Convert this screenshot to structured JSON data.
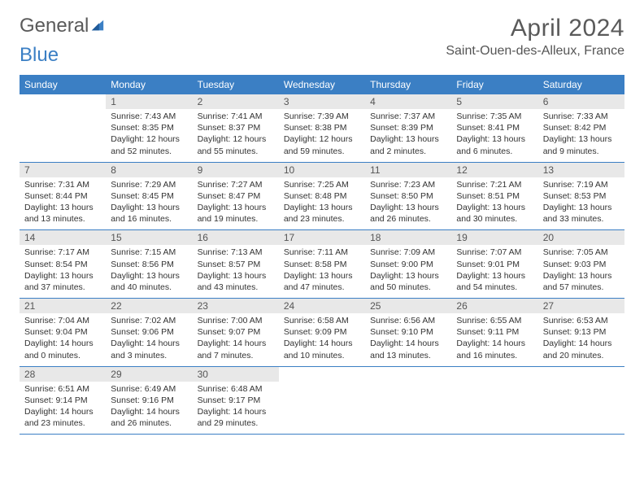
{
  "logo": {
    "text1": "General",
    "text2": "Blue"
  },
  "title": "April 2024",
  "location": "Saint-Ouen-des-Alleux, France",
  "colors": {
    "header_bg": "#3b7fc4",
    "header_text": "#ffffff",
    "daynum_bg": "#e8e8e8",
    "border": "#3b7fc4",
    "text": "#333333",
    "title_color": "#5a5a5a"
  },
  "weekdays": [
    "Sunday",
    "Monday",
    "Tuesday",
    "Wednesday",
    "Thursday",
    "Friday",
    "Saturday"
  ],
  "weeks": [
    [
      null,
      {
        "day": "1",
        "sunrise": "7:43 AM",
        "sunset": "8:35 PM",
        "daylight": "12 hours and 52 minutes."
      },
      {
        "day": "2",
        "sunrise": "7:41 AM",
        "sunset": "8:37 PM",
        "daylight": "12 hours and 55 minutes."
      },
      {
        "day": "3",
        "sunrise": "7:39 AM",
        "sunset": "8:38 PM",
        "daylight": "12 hours and 59 minutes."
      },
      {
        "day": "4",
        "sunrise": "7:37 AM",
        "sunset": "8:39 PM",
        "daylight": "13 hours and 2 minutes."
      },
      {
        "day": "5",
        "sunrise": "7:35 AM",
        "sunset": "8:41 PM",
        "daylight": "13 hours and 6 minutes."
      },
      {
        "day": "6",
        "sunrise": "7:33 AM",
        "sunset": "8:42 PM",
        "daylight": "13 hours and 9 minutes."
      }
    ],
    [
      {
        "day": "7",
        "sunrise": "7:31 AM",
        "sunset": "8:44 PM",
        "daylight": "13 hours and 13 minutes."
      },
      {
        "day": "8",
        "sunrise": "7:29 AM",
        "sunset": "8:45 PM",
        "daylight": "13 hours and 16 minutes."
      },
      {
        "day": "9",
        "sunrise": "7:27 AM",
        "sunset": "8:47 PM",
        "daylight": "13 hours and 19 minutes."
      },
      {
        "day": "10",
        "sunrise": "7:25 AM",
        "sunset": "8:48 PM",
        "daylight": "13 hours and 23 minutes."
      },
      {
        "day": "11",
        "sunrise": "7:23 AM",
        "sunset": "8:50 PM",
        "daylight": "13 hours and 26 minutes."
      },
      {
        "day": "12",
        "sunrise": "7:21 AM",
        "sunset": "8:51 PM",
        "daylight": "13 hours and 30 minutes."
      },
      {
        "day": "13",
        "sunrise": "7:19 AM",
        "sunset": "8:53 PM",
        "daylight": "13 hours and 33 minutes."
      }
    ],
    [
      {
        "day": "14",
        "sunrise": "7:17 AM",
        "sunset": "8:54 PM",
        "daylight": "13 hours and 37 minutes."
      },
      {
        "day": "15",
        "sunrise": "7:15 AM",
        "sunset": "8:56 PM",
        "daylight": "13 hours and 40 minutes."
      },
      {
        "day": "16",
        "sunrise": "7:13 AM",
        "sunset": "8:57 PM",
        "daylight": "13 hours and 43 minutes."
      },
      {
        "day": "17",
        "sunrise": "7:11 AM",
        "sunset": "8:58 PM",
        "daylight": "13 hours and 47 minutes."
      },
      {
        "day": "18",
        "sunrise": "7:09 AM",
        "sunset": "9:00 PM",
        "daylight": "13 hours and 50 minutes."
      },
      {
        "day": "19",
        "sunrise": "7:07 AM",
        "sunset": "9:01 PM",
        "daylight": "13 hours and 54 minutes."
      },
      {
        "day": "20",
        "sunrise": "7:05 AM",
        "sunset": "9:03 PM",
        "daylight": "13 hours and 57 minutes."
      }
    ],
    [
      {
        "day": "21",
        "sunrise": "7:04 AM",
        "sunset": "9:04 PM",
        "daylight": "14 hours and 0 minutes."
      },
      {
        "day": "22",
        "sunrise": "7:02 AM",
        "sunset": "9:06 PM",
        "daylight": "14 hours and 3 minutes."
      },
      {
        "day": "23",
        "sunrise": "7:00 AM",
        "sunset": "9:07 PM",
        "daylight": "14 hours and 7 minutes."
      },
      {
        "day": "24",
        "sunrise": "6:58 AM",
        "sunset": "9:09 PM",
        "daylight": "14 hours and 10 minutes."
      },
      {
        "day": "25",
        "sunrise": "6:56 AM",
        "sunset": "9:10 PM",
        "daylight": "14 hours and 13 minutes."
      },
      {
        "day": "26",
        "sunrise": "6:55 AM",
        "sunset": "9:11 PM",
        "daylight": "14 hours and 16 minutes."
      },
      {
        "day": "27",
        "sunrise": "6:53 AM",
        "sunset": "9:13 PM",
        "daylight": "14 hours and 20 minutes."
      }
    ],
    [
      {
        "day": "28",
        "sunrise": "6:51 AM",
        "sunset": "9:14 PM",
        "daylight": "14 hours and 23 minutes."
      },
      {
        "day": "29",
        "sunrise": "6:49 AM",
        "sunset": "9:16 PM",
        "daylight": "14 hours and 26 minutes."
      },
      {
        "day": "30",
        "sunrise": "6:48 AM",
        "sunset": "9:17 PM",
        "daylight": "14 hours and 29 minutes."
      },
      null,
      null,
      null,
      null
    ]
  ],
  "labels": {
    "sunrise": "Sunrise: ",
    "sunset": "Sunset: ",
    "daylight": "Daylight: "
  }
}
